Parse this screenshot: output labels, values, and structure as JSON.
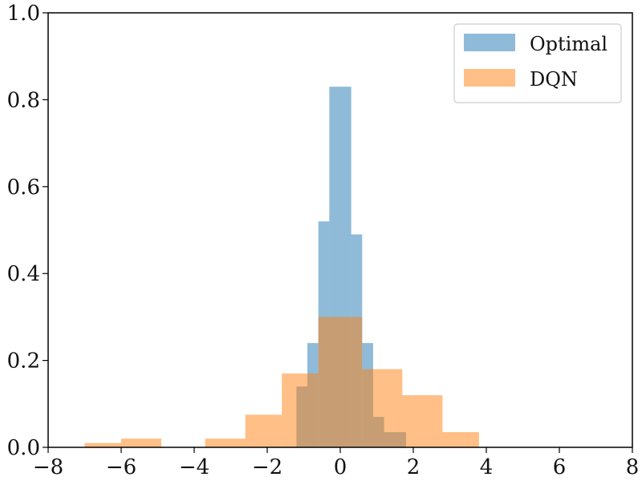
{
  "chart_data": {
    "type": "bar",
    "xlim": [
      -8,
      8
    ],
    "ylim": [
      0,
      1.0
    ],
    "xticks": [
      -8,
      -6,
      -4,
      -2,
      0,
      2,
      4,
      6,
      8
    ],
    "xtick_labels": [
      "−8",
      "−6",
      "−4",
      "−2",
      "0",
      "2",
      "4",
      "6",
      "8"
    ],
    "yticks": [
      0.0,
      0.2,
      0.4,
      0.6,
      0.8,
      1.0
    ],
    "ytick_labels": [
      "0.0",
      "0.2",
      "0.4",
      "0.6",
      "0.8",
      "1.0"
    ],
    "grid": false,
    "legend_position": "top-right",
    "series": [
      {
        "name": "Optimal",
        "color": "#1f77b4",
        "opacity": 0.5,
        "bins": [
          {
            "x0": -1.2,
            "x1": -0.9,
            "y": 0.14
          },
          {
            "x0": -0.9,
            "x1": -0.6,
            "y": 0.24
          },
          {
            "x0": -0.6,
            "x1": -0.3,
            "y": 0.52
          },
          {
            "x0": -0.3,
            "x1": 0.3,
            "y": 0.83
          },
          {
            "x0": 0.3,
            "x1": 0.6,
            "y": 0.49
          },
          {
            "x0": 0.6,
            "x1": 0.9,
            "y": 0.24
          },
          {
            "x0": 0.9,
            "x1": 1.2,
            "y": 0.07
          },
          {
            "x0": 1.2,
            "x1": 1.8,
            "y": 0.035
          }
        ]
      },
      {
        "name": "DQN",
        "color": "#ff7f0e",
        "opacity": 0.5,
        "bins": [
          {
            "x0": -7.0,
            "x1": -6.0,
            "y": 0.01
          },
          {
            "x0": -6.0,
            "x1": -4.9,
            "y": 0.02
          },
          {
            "x0": -3.7,
            "x1": -2.6,
            "y": 0.02
          },
          {
            "x0": -2.6,
            "x1": -1.6,
            "y": 0.075
          },
          {
            "x0": -1.6,
            "x1": -0.6,
            "y": 0.17
          },
          {
            "x0": -0.6,
            "x1": 0.6,
            "y": 0.3
          },
          {
            "x0": 0.6,
            "x1": 1.7,
            "y": 0.18
          },
          {
            "x0": 1.7,
            "x1": 2.8,
            "y": 0.12
          },
          {
            "x0": 2.8,
            "x1": 3.8,
            "y": 0.035
          }
        ]
      }
    ]
  }
}
